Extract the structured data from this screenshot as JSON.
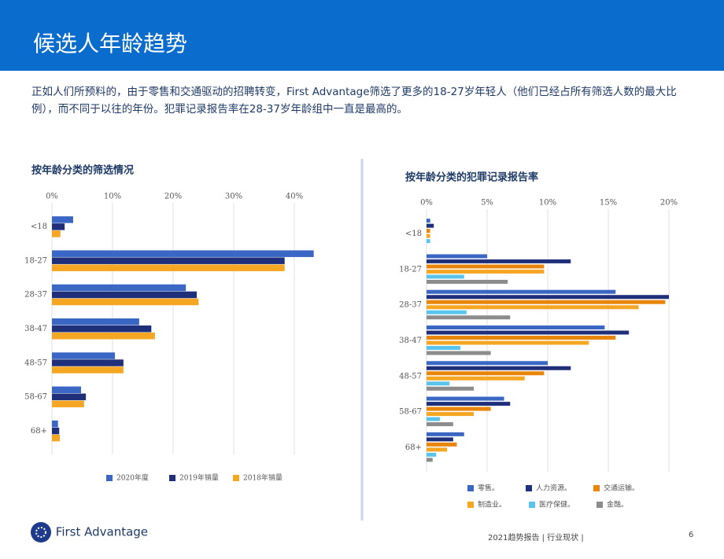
{
  "header": {
    "title": "候选人年龄趋势"
  },
  "body": {
    "intro": "正如人们所预料的，由于零售和交通驱动的招聘转变，First Advantage筛选了更多的18-27岁年轻人（他们已经占所有筛选人数的最大比例），而不同于以往的年份。犯罪记录报告率在28-37岁年龄组中一直是最高的。"
  },
  "footer": {
    "brand": "First Advantage",
    "report": "2021趋势报告 | 行业现状 |",
    "page": "6"
  },
  "chart_data": [
    {
      "type": "hbar",
      "title": "按年龄分类的筛选情况",
      "categories": [
        "<18",
        "18-27",
        "28-37",
        "38-47",
        "48-57",
        "58-67",
        "68+"
      ],
      "series": [
        {
          "name": "2020年度",
          "color": "#3a66c4",
          "values": [
            3.5,
            43.2,
            22.1,
            14.4,
            10.4,
            4.8,
            1.0
          ]
        },
        {
          "name": "2019年销量",
          "color": "#1f2f7a",
          "values": [
            2.1,
            38.4,
            23.9,
            16.4,
            11.8,
            5.6,
            1.2
          ]
        },
        {
          "name": "2018年销量",
          "color": "#f5a623",
          "values": [
            1.4,
            38.4,
            24.2,
            17.0,
            11.8,
            5.3,
            1.3
          ]
        }
      ],
      "xlim": [
        0,
        44
      ],
      "xticks": [
        {
          "value": 0,
          "label": "0%"
        },
        {
          "value": 10,
          "label": "10%"
        },
        {
          "value": 20,
          "label": "20%"
        },
        {
          "value": 30,
          "label": "30%"
        },
        {
          "value": 40,
          "label": "40%"
        }
      ],
      "grid": true
    },
    {
      "type": "hbar",
      "title": "按年龄分类的犯罪记录报告率",
      "categories": [
        "<18",
        "18-27",
        "28-37",
        "38-47",
        "48-57",
        "58-67",
        "68+"
      ],
      "series": [
        {
          "name": "零售。",
          "color": "#3a66c4",
          "values": [
            0.3,
            5.0,
            15.6,
            14.7,
            10.0,
            6.4,
            3.1
          ]
        },
        {
          "name": "人力资源。",
          "color": "#1f2f7a",
          "values": [
            0.6,
            11.9,
            20.0,
            16.7,
            11.9,
            6.9,
            2.2
          ]
        },
        {
          "name": "交通运输。",
          "color": "#e8860c",
          "values": [
            0.3,
            9.7,
            19.7,
            15.6,
            9.7,
            5.3,
            2.5
          ]
        },
        {
          "name": "制造业。",
          "color": "#f5a623",
          "values": [
            0.3,
            9.7,
            17.5,
            13.4,
            8.1,
            3.9,
            1.7
          ]
        },
        {
          "name": "医疗保健。",
          "color": "#5bc4ec",
          "values": [
            0.3,
            3.1,
            3.3,
            2.8,
            1.9,
            1.1,
            0.8
          ]
        },
        {
          "name": "金融。",
          "color": "#8c8c8c",
          "values": [
            0,
            6.7,
            6.9,
            5.3,
            3.9,
            2.2,
            0.5
          ]
        }
      ],
      "xlim": [
        0,
        20.5
      ],
      "xticks": [
        {
          "value": 0,
          "label": "0%"
        },
        {
          "value": 5,
          "label": "5%"
        },
        {
          "value": 10,
          "label": "10%"
        },
        {
          "value": 15,
          "label": "15%"
        },
        {
          "value": 20,
          "label": "20%"
        }
      ],
      "grid": true
    }
  ]
}
